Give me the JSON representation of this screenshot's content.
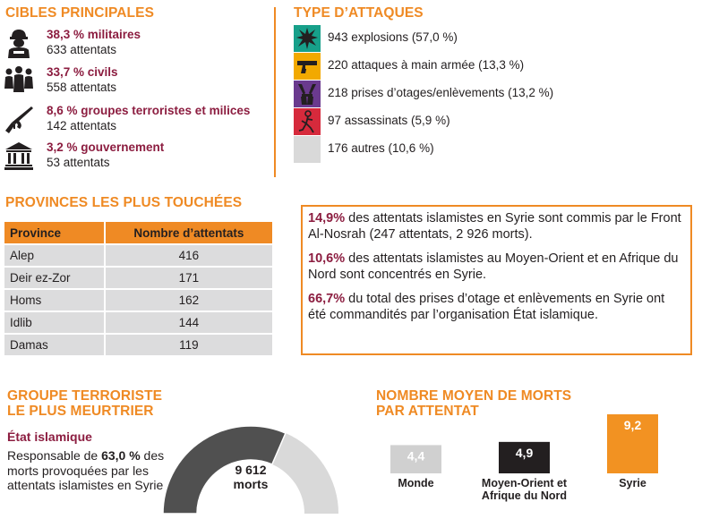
{
  "targets": {
    "title": "CIBLES PRINCIPALES",
    "items": [
      {
        "pct": "38,3 % militaires",
        "count": "633 attentats",
        "icon": "soldier-icon"
      },
      {
        "pct": "33,7 % civils",
        "count": "558 attentats",
        "icon": "people-icon"
      },
      {
        "pct": "8,6 % groupes terroristes et milices",
        "count": "142 attentats",
        "icon": "rifle-icon"
      },
      {
        "pct": "3,2 % gouvernement",
        "count": "53 attentats",
        "icon": "government-building-icon"
      }
    ]
  },
  "attack_types": {
    "title": "TYPE D’ATTAQUES",
    "items": [
      {
        "label": "943 explosions (57,0 %)",
        "color": "#17a08a",
        "icon": "explosion-icon"
      },
      {
        "label": "220 attaques à main armée (13,3 %)",
        "color": "#f2a900",
        "icon": "pistol-icon"
      },
      {
        "label": "218 prises d’otages/enlèvements (13,2 %)",
        "color": "#6a3a8e",
        "icon": "hostage-hands-icon"
      },
      {
        "label": "97 assassinats (5,9 %)",
        "color": "#d62a3c",
        "icon": "assassination-icon"
      },
      {
        "label": "176 autres (10,6 %)",
        "color": "#d9d9d9",
        "icon": "other-icon"
      }
    ]
  },
  "provinces": {
    "title": "PROVINCES LES PLUS TOUCHÉES",
    "headers": [
      "Province",
      "Nombre d’attentats"
    ],
    "rows": [
      [
        "Alep",
        "416"
      ],
      [
        "Deir ez-Zor",
        "171"
      ],
      [
        "Homs",
        "162"
      ],
      [
        "Idlib",
        "144"
      ],
      [
        "Damas",
        "119"
      ]
    ]
  },
  "info": {
    "p1_hl": "14,9%",
    "p1_text": " des attentats islamistes en Syrie sont commis par le Front Al-Nosrah (247 attentats, 2 926 morts).",
    "p2_hl": "10,6%",
    "p2_text": " des attentats islamistes au Moyen-Orient et en Afrique du Nord sont concentrés en Syrie.",
    "p3_hl": "66,7%",
    "p3_text": " du total des prises d’otage et enlèvements en Syrie ont été commandités par l’organisation État islamique."
  },
  "deadliest_group": {
    "title_line1": "GROUPE TERRORISTE",
    "title_line2": "LE PLUS MEURTRIER",
    "name": "État islamique",
    "resp_pre": "Responsable de ",
    "resp_pct": "63,0 %",
    "resp_post": " des morts provoquées par les attentats islamistes en Syrie",
    "deaths_value": "9 612",
    "deaths_unit": "morts",
    "share": 63.0,
    "color_main": "#505050",
    "color_rest": "#d9d9d9"
  },
  "chart_data": {
    "type": "bar",
    "title": "NOMBRE MOYEN DE MORTS PAR ATTENTAT",
    "title_line1": "NOMBRE MOYEN DE MORTS",
    "title_line2": "PAR ATTENTAT",
    "categories": [
      "Monde",
      "Moyen-Orient et Afrique du Nord",
      "Syrie"
    ],
    "category_lines": [
      [
        "Monde"
      ],
      [
        "Moyen-Orient et",
        "Afrique du Nord"
      ],
      [
        "Syrie"
      ]
    ],
    "values": [
      4.4,
      4.9,
      9.2
    ],
    "value_labels": [
      "4,4",
      "4,9",
      "9,2"
    ],
    "colors": [
      "#d0d0d0",
      "#231f20",
      "#f29222"
    ],
    "ylim": [
      0,
      9.2
    ],
    "xlabel": "",
    "ylabel": ""
  },
  "colors": {
    "accent": "#ef8a24",
    "highlight": "#8c1d40"
  }
}
